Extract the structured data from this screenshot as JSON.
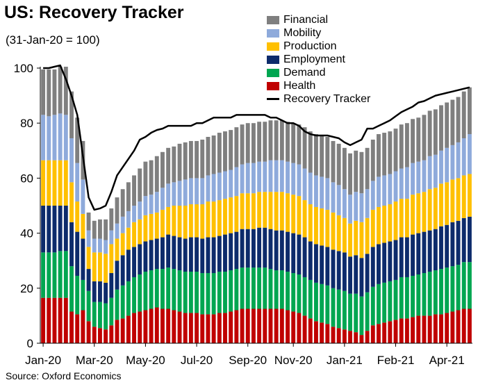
{
  "header": {
    "title": "US: Recovery Tracker",
    "subtitle": "(31-Jan-20 = 100)",
    "source": "Source: Oxford Economics"
  },
  "chart_data": {
    "type": "bar",
    "stacked": true,
    "x_tick_labels": [
      "Jan-20",
      "Mar-20",
      "May-20",
      "Jul-20",
      "Sep-20",
      "Nov-20",
      "Jan-21",
      "Feb-21",
      "Apr-21"
    ],
    "x_tick_bar_index": [
      0,
      9,
      18,
      27,
      36,
      44,
      53,
      62,
      71
    ],
    "ylim": [
      0,
      100
    ],
    "yticks": [
      0,
      20,
      40,
      60,
      80,
      100
    ],
    "legend_position": "top-right",
    "series": [
      {
        "name": "Health",
        "color": "#c00000",
        "values": [
          16.5,
          16.5,
          16.5,
          16.5,
          16.5,
          11.5,
          10.5,
          12,
          8,
          6,
          5.5,
          5,
          6.5,
          8.5,
          9,
          10,
          11,
          11.5,
          12,
          12.5,
          13,
          12.5,
          12.5,
          12,
          11.5,
          11,
          11,
          11,
          10.5,
          10.5,
          10.5,
          11,
          11,
          11.5,
          12,
          12.5,
          12.5,
          12.5,
          12.5,
          12.5,
          12.5,
          12.5,
          12.5,
          12,
          11.5,
          11,
          10,
          9,
          8,
          7.5,
          7,
          6,
          5.5,
          5,
          4.5,
          4,
          3,
          4.5,
          6.5,
          7,
          7.5,
          8,
          8.5,
          9,
          9,
          9.5,
          10,
          10,
          10,
          10.5,
          10.5,
          11,
          11.5,
          12,
          12.5,
          12.5
        ]
      },
      {
        "name": "Demand",
        "color": "#00a651",
        "values": [
          16.5,
          16.5,
          16.5,
          17,
          17,
          16.5,
          14,
          11,
          11,
          9,
          9.5,
          9.5,
          10,
          11,
          12,
          12.5,
          13,
          13.5,
          14,
          14,
          14,
          14.5,
          15,
          15,
          15,
          15,
          15,
          15,
          15,
          15,
          15,
          15,
          15,
          15,
          15,
          15,
          15,
          15,
          15,
          15,
          14.5,
          14,
          14,
          14,
          14,
          14,
          14,
          14,
          14,
          14,
          14,
          14,
          14,
          14,
          13.5,
          14,
          14,
          14,
          14,
          14.5,
          14.5,
          14.5,
          14.5,
          15,
          15,
          15,
          15,
          15.5,
          16,
          16,
          16.5,
          16.5,
          16.5,
          16.5,
          17,
          17
        ]
      },
      {
        "name": "Employment",
        "color": "#0d2b6b",
        "values": [
          17,
          17,
          17,
          16.5,
          16.5,
          16,
          16,
          15,
          8,
          7.5,
          7.5,
          7.5,
          9,
          10.5,
          11,
          11.5,
          11,
          11,
          11,
          11,
          11,
          11.5,
          12,
          12,
          12,
          12,
          12.5,
          12.5,
          12.5,
          13,
          13,
          13,
          13.5,
          13.5,
          13.5,
          14,
          14,
          14,
          14.5,
          14.5,
          14.5,
          14.5,
          14.5,
          14.5,
          14.5,
          14.5,
          14.5,
          14,
          14,
          14,
          14,
          14,
          14,
          14,
          13.5,
          14,
          14,
          14,
          14.5,
          14.5,
          14.5,
          14.5,
          14.5,
          14.5,
          14.5,
          15,
          15,
          15,
          15,
          15,
          15.5,
          15.5,
          16,
          16,
          16,
          16.5
        ]
      },
      {
        "name": "Production",
        "color": "#ffc000",
        "values": [
          16.5,
          16.5,
          16.5,
          16.5,
          16.5,
          14.5,
          11,
          9,
          8,
          10.5,
          10.5,
          10.5,
          10.5,
          8,
          8,
          8,
          9,
          9,
          9.5,
          9.5,
          9.5,
          10,
          10,
          11,
          11.5,
          12,
          12,
          12,
          12.5,
          13,
          13,
          13,
          13,
          13,
          13,
          13,
          13,
          13,
          13,
          13,
          13.5,
          14,
          14,
          14,
          14,
          14,
          13.5,
          13.5,
          13.5,
          13.5,
          13.5,
          13.5,
          13,
          12.5,
          12,
          12.5,
          13,
          13,
          13.5,
          13.5,
          13.5,
          13.5,
          14,
          14,
          14,
          14.5,
          14.5,
          14.5,
          15,
          15,
          15.5,
          15.5,
          15.5,
          15.5,
          15.5,
          15.5
        ]
      },
      {
        "name": "Mobility",
        "color": "#8eaadb",
        "values": [
          16.5,
          16,
          16.5,
          17,
          16.5,
          16,
          14,
          12.5,
          6,
          5,
          5,
          5,
          5,
          5.5,
          6,
          6,
          6,
          6.5,
          7,
          7,
          7.5,
          8,
          8.5,
          8.5,
          9,
          9.5,
          9.5,
          9.5,
          9.5,
          9.5,
          10,
          10,
          10,
          10,
          10.5,
          10.5,
          11,
          11,
          11,
          11,
          11.5,
          11.5,
          11.5,
          11.5,
          11.5,
          11.5,
          11.5,
          11.5,
          11.5,
          11.5,
          11.5,
          11,
          11,
          10.5,
          10.5,
          10.5,
          10.5,
          10.5,
          10.5,
          11,
          11,
          11,
          11,
          11,
          11.5,
          11.5,
          11.5,
          11.5,
          12,
          12,
          12,
          12.5,
          12.5,
          13,
          13.5,
          14.5
        ]
      },
      {
        "name": "Financial",
        "color": "#7f7f7f",
        "values": [
          16.5,
          17,
          16.5,
          17,
          17.5,
          17,
          16.5,
          14,
          6.5,
          6.5,
          7,
          7.5,
          8,
          9.5,
          10,
          10.5,
          11,
          12,
          12.5,
          12.5,
          13,
          13,
          13,
          13,
          13.5,
          13.5,
          13.5,
          13.5,
          14,
          14,
          14,
          14.5,
          14.5,
          14.5,
          14.5,
          14.5,
          14.5,
          14.5,
          14.5,
          14.5,
          14.5,
          14.5,
          14.5,
          14.5,
          14.5,
          14.5,
          15,
          15,
          15,
          15,
          15,
          15,
          15,
          15,
          15,
          15,
          15,
          15,
          15,
          15.5,
          15.5,
          15.5,
          15.5,
          16,
          16,
          16,
          16,
          16.5,
          16.5,
          16.5,
          16.5,
          16.5,
          16.5,
          16.5,
          17,
          17
        ]
      }
    ],
    "line": {
      "name": "Recovery Tracker",
      "color": "#000000",
      "values": [
        100,
        100,
        100.5,
        101,
        96,
        90,
        83,
        68,
        53,
        48.5,
        49,
        50,
        55,
        61,
        64,
        67,
        70,
        74,
        75,
        76.5,
        77.5,
        78,
        79,
        79,
        79,
        79,
        79,
        80,
        80,
        81,
        82,
        82,
        82,
        82,
        83,
        83,
        83,
        83,
        83,
        83,
        82,
        82,
        81,
        80,
        80,
        79,
        77,
        76,
        75.5,
        75.5,
        75.5,
        75,
        74.5,
        73,
        72,
        73,
        74,
        78,
        78,
        79,
        80,
        81,
        82.5,
        84,
        85,
        86,
        87.5,
        88,
        89,
        90,
        90.5,
        91,
        91.5,
        92,
        92.5,
        93
      ]
    }
  }
}
